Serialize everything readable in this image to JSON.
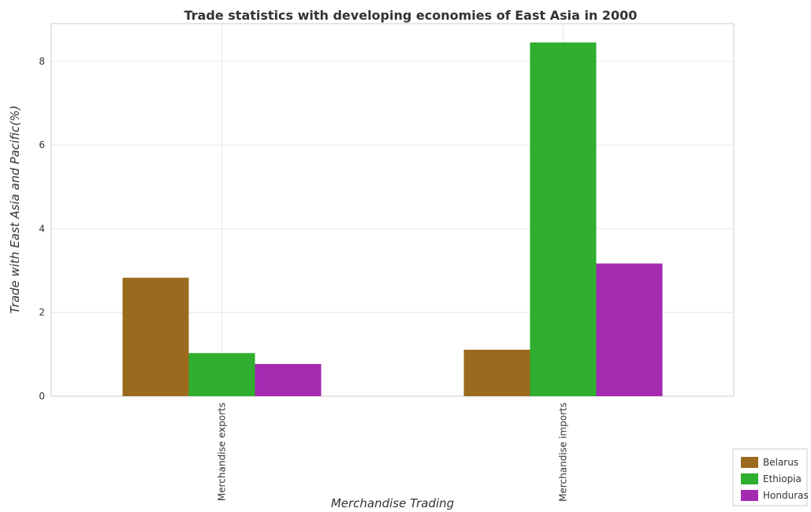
{
  "chart_data": {
    "type": "bar",
    "title": "Trade statistics with developing economies of East Asia in 2000",
    "xlabel": "Merchandise Trading",
    "ylabel": "Trade with East Asia and Pacific(%)",
    "categories": [
      "Merchandise exports",
      "Merchandise imports"
    ],
    "series": [
      {
        "name": "Belarus",
        "color": "#9b6a1e",
        "values": [
          2.83,
          1.11
        ]
      },
      {
        "name": "Ethiopia",
        "color": "#2fae2f",
        "values": [
          1.03,
          8.45
        ]
      },
      {
        "name": "Honduras",
        "color": "#a42ab0",
        "values": [
          0.77,
          3.17
        ]
      }
    ],
    "ylim": [
      0,
      8.9
    ],
    "yticks": [
      "0",
      "2",
      "4",
      "6",
      "8"
    ],
    "grid": true,
    "legend_position": "bottom-right"
  },
  "colors": {
    "belarus": "#9b6a1e",
    "ethiopia": "#2fae2f",
    "honduras": "#a42ab0"
  }
}
